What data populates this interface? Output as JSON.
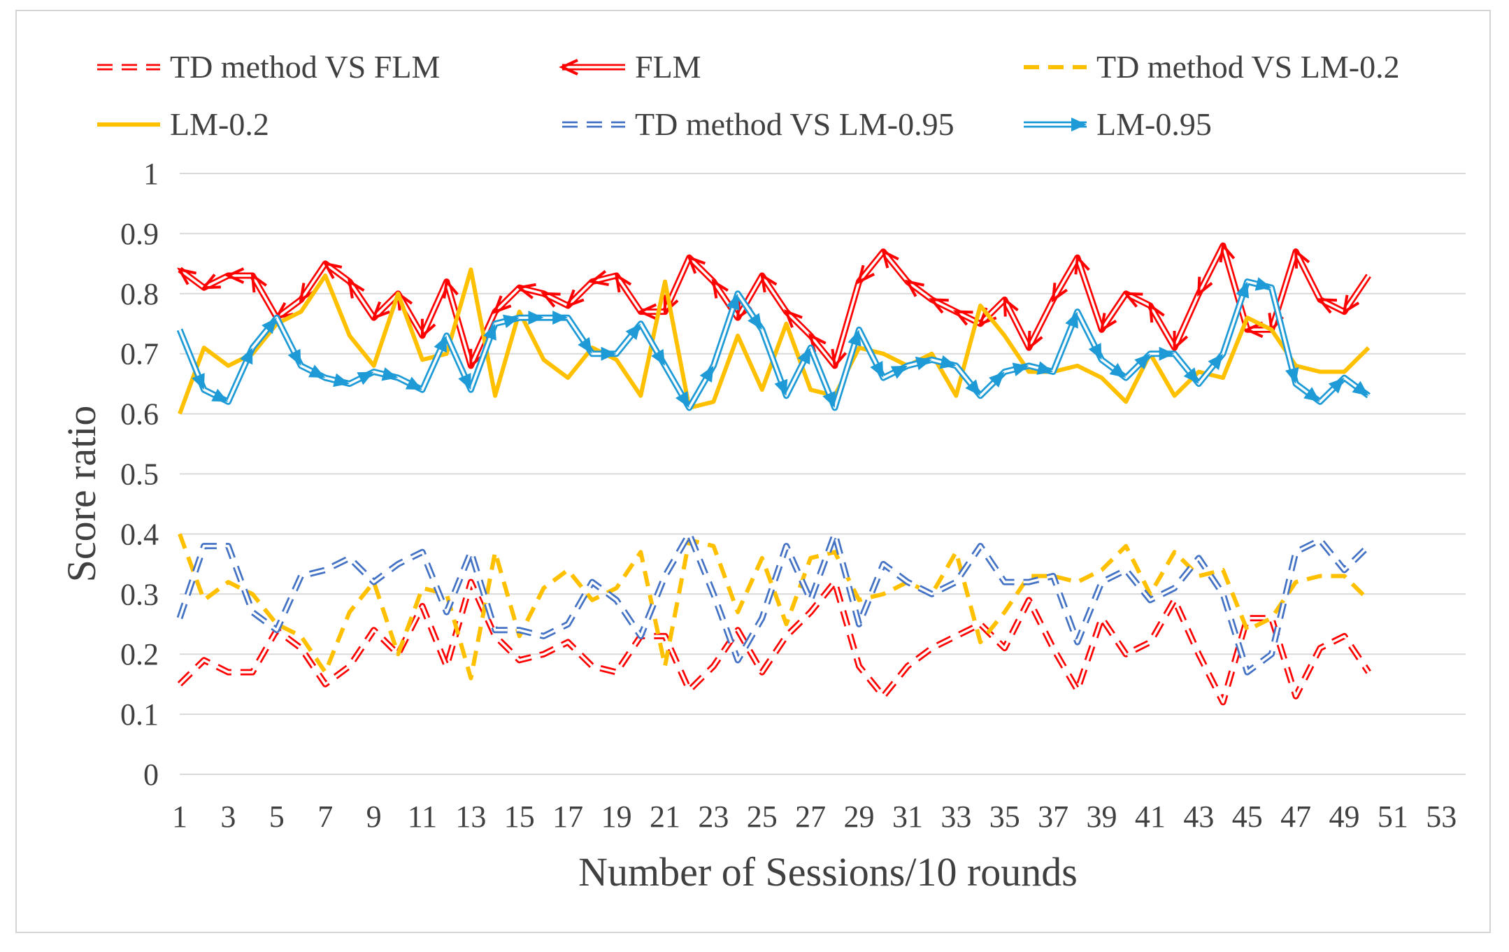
{
  "chart_data": {
    "type": "line",
    "title": "",
    "xlabel": "Number of Sessions/10 rounds",
    "ylabel": "Score ratio",
    "ylim": [
      0,
      1
    ],
    "yticks": [
      0,
      0.1,
      0.2,
      0.3,
      0.4,
      0.5,
      0.6,
      0.7,
      0.8,
      0.9,
      1
    ],
    "ytick_labels": [
      "0",
      "0.1",
      "0.2",
      "0.3",
      "0.4",
      "0.5",
      "0.6",
      "0.7",
      "0.8",
      "0.9",
      "1"
    ],
    "xlim": [
      1,
      54
    ],
    "xtick_labels": [
      "1",
      "3",
      "5",
      "7",
      "9",
      "11",
      "13",
      "15",
      "17",
      "19",
      "21",
      "23",
      "25",
      "27",
      "29",
      "31",
      "33",
      "35",
      "37",
      "39",
      "41",
      "43",
      "45",
      "47",
      "49",
      "51",
      "53"
    ],
    "grid": true,
    "legend_position": "top",
    "series": [
      {
        "name": "TD method VS FLM",
        "color": "#ff0000",
        "style": "dashed-double",
        "marker": "none",
        "values": [
          0.15,
          0.19,
          0.17,
          0.17,
          0.24,
          0.21,
          0.15,
          0.18,
          0.24,
          0.2,
          0.28,
          0.18,
          0.32,
          0.23,
          0.19,
          0.2,
          0.22,
          0.18,
          0.17,
          0.23,
          0.23,
          0.14,
          0.18,
          0.24,
          0.17,
          0.23,
          0.27,
          0.32,
          0.18,
          0.13,
          0.18,
          0.21,
          0.23,
          0.25,
          0.21,
          0.29,
          0.21,
          0.14,
          0.26,
          0.2,
          0.22,
          0.29,
          0.2,
          0.12,
          0.26,
          0.26,
          0.13,
          0.21,
          0.23,
          0.17
        ]
      },
      {
        "name": "FLM",
        "color": "#ff0000",
        "style": "solid-double",
        "marker": "arrow-left",
        "values": [
          0.84,
          0.81,
          0.83,
          0.83,
          0.76,
          0.79,
          0.85,
          0.82,
          0.76,
          0.8,
          0.73,
          0.82,
          0.68,
          0.77,
          0.81,
          0.8,
          0.78,
          0.82,
          0.83,
          0.77,
          0.77,
          0.86,
          0.82,
          0.76,
          0.83,
          0.77,
          0.73,
          0.68,
          0.82,
          0.87,
          0.82,
          0.79,
          0.77,
          0.75,
          0.79,
          0.71,
          0.79,
          0.86,
          0.74,
          0.8,
          0.78,
          0.71,
          0.8,
          0.88,
          0.74,
          0.74,
          0.87,
          0.79,
          0.77,
          0.83
        ]
      },
      {
        "name": "TD method VS LM-0.2",
        "color": "#ffc000",
        "style": "dashed",
        "marker": "none",
        "values": [
          0.4,
          0.29,
          0.32,
          0.3,
          0.25,
          0.23,
          0.17,
          0.27,
          0.32,
          0.2,
          0.31,
          0.3,
          0.16,
          0.37,
          0.23,
          0.31,
          0.34,
          0.29,
          0.31,
          0.37,
          0.18,
          0.39,
          0.38,
          0.27,
          0.36,
          0.25,
          0.36,
          0.37,
          0.29,
          0.3,
          0.32,
          0.3,
          0.37,
          0.22,
          0.27,
          0.33,
          0.33,
          0.32,
          0.34,
          0.38,
          0.3,
          0.37,
          0.33,
          0.34,
          0.24,
          0.26,
          0.32,
          0.33,
          0.33,
          0.29
        ]
      },
      {
        "name": "LM-0.2",
        "color": "#ffc000",
        "style": "solid",
        "marker": "none",
        "values": [
          0.6,
          0.71,
          0.68,
          0.7,
          0.75,
          0.77,
          0.83,
          0.73,
          0.68,
          0.8,
          0.69,
          0.7,
          0.84,
          0.63,
          0.77,
          0.69,
          0.66,
          0.71,
          0.69,
          0.63,
          0.82,
          0.61,
          0.62,
          0.73,
          0.64,
          0.75,
          0.64,
          0.63,
          0.71,
          0.7,
          0.68,
          0.7,
          0.63,
          0.78,
          0.73,
          0.67,
          0.67,
          0.68,
          0.66,
          0.62,
          0.7,
          0.63,
          0.67,
          0.66,
          0.76,
          0.74,
          0.68,
          0.67,
          0.67,
          0.71
        ]
      },
      {
        "name": "TD method VS LM-0.95",
        "color": "#4472c4",
        "style": "dashed-double",
        "marker": "none",
        "values": [
          0.26,
          0.38,
          0.38,
          0.27,
          0.24,
          0.33,
          0.34,
          0.36,
          0.32,
          0.35,
          0.37,
          0.27,
          0.37,
          0.24,
          0.24,
          0.23,
          0.25,
          0.32,
          0.29,
          0.23,
          0.33,
          0.4,
          0.3,
          0.19,
          0.26,
          0.38,
          0.29,
          0.4,
          0.25,
          0.35,
          0.32,
          0.3,
          0.32,
          0.38,
          0.32,
          0.32,
          0.33,
          0.22,
          0.32,
          0.34,
          0.29,
          0.31,
          0.36,
          0.3,
          0.17,
          0.2,
          0.37,
          0.39,
          0.34,
          0.38
        ]
      },
      {
        "name": "LM-0.95",
        "color": "#1e9bd7",
        "style": "solid-double",
        "marker": "arrow-right",
        "values": [
          0.74,
          0.64,
          0.62,
          0.71,
          0.76,
          0.68,
          0.66,
          0.65,
          0.67,
          0.66,
          0.64,
          0.73,
          0.64,
          0.75,
          0.76,
          0.76,
          0.76,
          0.7,
          0.7,
          0.75,
          0.68,
          0.61,
          0.68,
          0.8,
          0.74,
          0.63,
          0.71,
          0.61,
          0.74,
          0.66,
          0.68,
          0.69,
          0.68,
          0.63,
          0.67,
          0.68,
          0.67,
          0.77,
          0.69,
          0.66,
          0.7,
          0.7,
          0.65,
          0.7,
          0.82,
          0.81,
          0.65,
          0.62,
          0.66,
          0.63
        ]
      }
    ]
  }
}
